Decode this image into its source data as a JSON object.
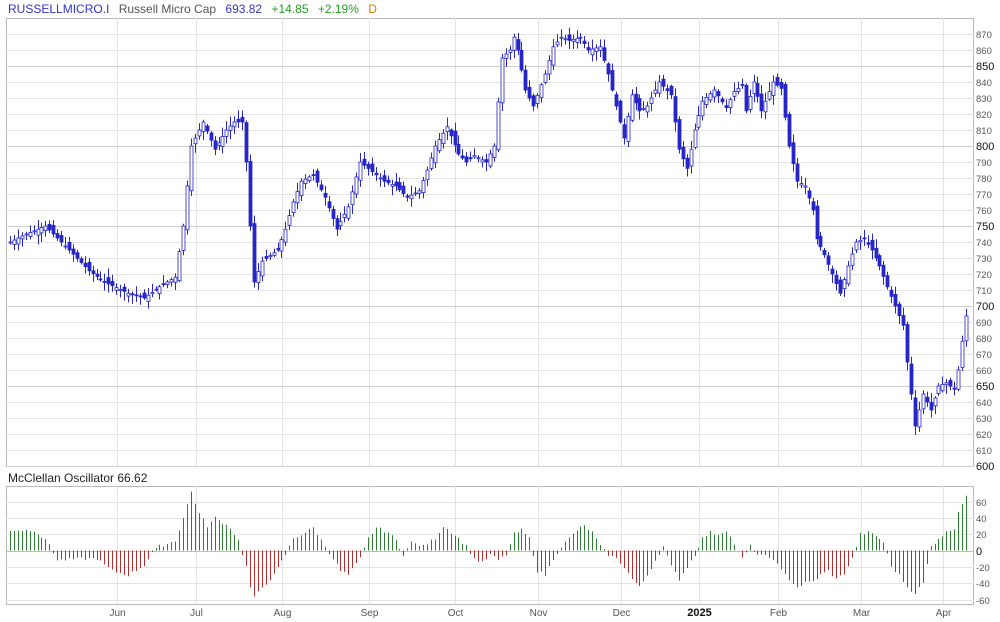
{
  "header": {
    "symbol": "RUSSELLMICRO.I",
    "name": "Russell Micro Cap",
    "last": "693.82",
    "change": "+14.85",
    "change_pct": "+2.19%",
    "interval": "D"
  },
  "colors": {
    "candle": "#2727c8",
    "osc_pos": "#2e7d32",
    "osc_neg": "#b03030",
    "grid": "#e4e4e4",
    "frame": "#b8b8b8"
  },
  "chart_data": [
    {
      "type": "candlestick",
      "title": "",
      "ylim": [
        600,
        875
      ],
      "y_ticks": [
        600,
        610,
        620,
        630,
        640,
        650,
        660,
        670,
        680,
        690,
        700,
        710,
        720,
        730,
        740,
        750,
        760,
        770,
        780,
        790,
        800,
        810,
        820,
        830,
        840,
        850,
        860,
        870
      ],
      "y_major": [
        600,
        650,
        700,
        750,
        800,
        850
      ],
      "x_labels": [
        "Jun",
        "Jul",
        "Aug",
        "Sep",
        "Oct",
        "Nov",
        "Dec",
        "2025",
        "Feb",
        "Mar",
        "Apr"
      ],
      "x_label_bold": "2025",
      "anchors": [
        [
          0,
          740
        ],
        [
          4,
          745
        ],
        [
          9,
          750
        ],
        [
          15,
          735
        ],
        [
          20,
          722
        ],
        [
          24,
          715
        ],
        [
          30,
          708
        ],
        [
          34,
          705
        ],
        [
          38,
          712
        ],
        [
          42,
          718
        ],
        [
          44,
          750
        ],
        [
          46,
          800
        ],
        [
          49,
          815
        ],
        [
          52,
          798
        ],
        [
          55,
          810
        ],
        [
          57,
          815
        ],
        [
          59,
          815
        ],
        [
          60,
          790
        ],
        [
          61,
          750
        ],
        [
          62,
          715
        ],
        [
          64,
          728
        ],
        [
          68,
          735
        ],
        [
          70,
          748
        ],
        [
          72,
          765
        ],
        [
          74,
          778
        ],
        [
          77,
          782
        ],
        [
          80,
          768
        ],
        [
          83,
          748
        ],
        [
          86,
          762
        ],
        [
          89,
          790
        ],
        [
          92,
          784
        ],
        [
          95,
          778
        ],
        [
          98,
          775
        ],
        [
          101,
          768
        ],
        [
          104,
          772
        ],
        [
          106,
          785
        ],
        [
          108,
          800
        ],
        [
          111,
          812
        ],
        [
          114,
          795
        ],
        [
          116,
          790
        ],
        [
          118,
          794
        ],
        [
          121,
          790
        ],
        [
          123,
          800
        ],
        [
          125,
          855
        ],
        [
          127,
          860
        ],
        [
          128,
          868
        ],
        [
          129,
          860
        ],
        [
          131,
          835
        ],
        [
          133,
          825
        ],
        [
          136,
          845
        ],
        [
          138,
          862
        ],
        [
          140,
          868
        ],
        [
          142,
          866
        ],
        [
          145,
          868
        ],
        [
          147,
          860
        ],
        [
          150,
          862
        ],
        [
          152,
          845
        ],
        [
          154,
          825
        ],
        [
          156,
          805
        ],
        [
          158,
          832
        ],
        [
          160,
          822
        ],
        [
          162,
          825
        ],
        [
          165,
          840
        ],
        [
          168,
          832
        ],
        [
          170,
          798
        ],
        [
          172,
          786
        ],
        [
          174,
          810
        ],
        [
          176,
          828
        ],
        [
          179,
          835
        ],
        [
          182,
          824
        ],
        [
          184,
          834
        ],
        [
          186,
          838
        ],
        [
          187,
          822
        ],
        [
          189,
          840
        ],
        [
          191,
          822
        ],
        [
          194,
          840
        ],
        [
          196,
          836
        ],
        [
          198,
          800
        ],
        [
          200,
          778
        ],
        [
          202,
          775
        ],
        [
          204,
          760
        ],
        [
          205,
          742
        ],
        [
          207,
          732
        ],
        [
          209,
          720
        ],
        [
          211,
          708
        ],
        [
          213,
          725
        ],
        [
          215,
          740
        ],
        [
          217,
          742
        ],
        [
          219,
          735
        ],
        [
          221,
          725
        ],
        [
          223,
          712
        ],
        [
          225,
          700
        ],
        [
          227,
          688
        ],
        [
          228,
          665
        ],
        [
          229,
          645
        ],
        [
          230,
          625
        ],
        [
          232,
          645
        ],
        [
          234,
          635
        ],
        [
          236,
          650
        ],
        [
          238,
          652
        ],
        [
          240,
          648
        ],
        [
          241,
          660
        ],
        [
          242,
          678
        ],
        [
          243,
          694
        ]
      ],
      "n_bars": 244,
      "last_close": 693.82
    },
    {
      "type": "bar",
      "title": "McClellan Oscillator",
      "value_label": "66.62",
      "ylim": [
        -60,
        75
      ],
      "y_ticks": [
        -60,
        -40,
        -20,
        0,
        20,
        40,
        60
      ],
      "y_major": [
        0
      ],
      "anchors": [
        [
          0,
          25
        ],
        [
          6,
          25
        ],
        [
          10,
          8
        ],
        [
          12,
          -12
        ],
        [
          18,
          -10
        ],
        [
          22,
          -10
        ],
        [
          26,
          -25
        ],
        [
          30,
          -30
        ],
        [
          34,
          -18
        ],
        [
          36,
          -2
        ],
        [
          38,
          5
        ],
        [
          42,
          12
        ],
        [
          44,
          40
        ],
        [
          46,
          72
        ],
        [
          48,
          45
        ],
        [
          50,
          30
        ],
        [
          52,
          40
        ],
        [
          56,
          28
        ],
        [
          58,
          12
        ],
        [
          60,
          -20
        ],
        [
          61,
          -45
        ],
        [
          62,
          -58
        ],
        [
          64,
          -45
        ],
        [
          67,
          -30
        ],
        [
          70,
          -5
        ],
        [
          72,
          15
        ],
        [
          75,
          22
        ],
        [
          77,
          28
        ],
        [
          80,
          5
        ],
        [
          82,
          -10
        ],
        [
          84,
          -25
        ],
        [
          86,
          -30
        ],
        [
          89,
          -10
        ],
        [
          91,
          15
        ],
        [
          93,
          28
        ],
        [
          96,
          22
        ],
        [
          98,
          12
        ],
        [
          100,
          -5
        ],
        [
          102,
          10
        ],
        [
          105,
          5
        ],
        [
          108,
          15
        ],
        [
          110,
          30
        ],
        [
          114,
          15
        ],
        [
          116,
          5
        ],
        [
          118,
          -10
        ],
        [
          120,
          -15
        ],
        [
          122,
          -5
        ],
        [
          124,
          -12
        ],
        [
          126,
          -5
        ],
        [
          128,
          20
        ],
        [
          130,
          25
        ],
        [
          132,
          15
        ],
        [
          134,
          -25
        ],
        [
          136,
          -30
        ],
        [
          138,
          -10
        ],
        [
          140,
          5
        ],
        [
          142,
          15
        ],
        [
          144,
          25
        ],
        [
          146,
          30
        ],
        [
          148,
          22
        ],
        [
          150,
          5
        ],
        [
          152,
          -5
        ],
        [
          154,
          -10
        ],
        [
          156,
          -20
        ],
        [
          158,
          -35
        ],
        [
          160,
          -45
        ],
        [
          162,
          -30
        ],
        [
          164,
          -12
        ],
        [
          166,
          5
        ],
        [
          168,
          -20
        ],
        [
          170,
          -35
        ],
        [
          172,
          -20
        ],
        [
          174,
          -5
        ],
        [
          176,
          15
        ],
        [
          178,
          22
        ],
        [
          180,
          20
        ],
        [
          182,
          25
        ],
        [
          184,
          8
        ],
        [
          186,
          -10
        ],
        [
          188,
          5
        ],
        [
          190,
          -5
        ],
        [
          194,
          -10
        ],
        [
          196,
          -25
        ],
        [
          198,
          -35
        ],
        [
          200,
          -45
        ],
        [
          202,
          -40
        ],
        [
          204,
          -38
        ],
        [
          206,
          -30
        ],
        [
          208,
          -25
        ],
        [
          210,
          -35
        ],
        [
          212,
          -28
        ],
        [
          214,
          -10
        ],
        [
          216,
          20
        ],
        [
          218,
          22
        ],
        [
          220,
          18
        ],
        [
          222,
          10
        ],
        [
          224,
          -20
        ],
        [
          226,
          -30
        ],
        [
          228,
          -45
        ],
        [
          230,
          -52
        ],
        [
          232,
          -40
        ],
        [
          234,
          5
        ],
        [
          236,
          15
        ],
        [
          238,
          22
        ],
        [
          240,
          28
        ],
        [
          241,
          48
        ],
        [
          242,
          58
        ],
        [
          243,
          67
        ]
      ]
    }
  ]
}
